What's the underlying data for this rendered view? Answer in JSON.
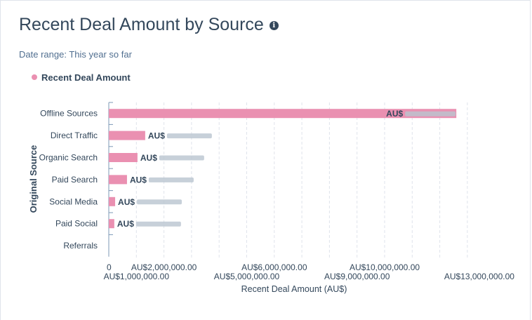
{
  "title": "Recent Deal Amount by Source",
  "date_range_label": "Date range:",
  "date_range_value": "This year so far",
  "colors": {
    "bar": "#ea90b1",
    "text": "#33475b",
    "grid": "#dfe3eb"
  },
  "icons": {
    "info": "info-circle-icon"
  },
  "chart_data": {
    "type": "bar",
    "orientation": "horizontal",
    "title": "Recent Deal Amount by Source",
    "xlabel": "Recent Deal Amount (AU$)",
    "ylabel": "Original Source",
    "legend": {
      "entries": [
        "Recent Deal Amount"
      ],
      "placement": "top-left"
    },
    "categories": [
      "Offline Sources",
      "Direct Traffic",
      "Organic Search",
      "Paid Search",
      "Social Media",
      "Paid Social",
      "Referrals"
    ],
    "series": [
      {
        "name": "Recent Deal Amount",
        "values": [
          12600000,
          1320000,
          1040000,
          660000,
          230000,
          200000,
          0
        ]
      }
    ],
    "data_label_prefix": "AU$",
    "xlim": [
      0,
      13500000
    ],
    "grid": true,
    "xticks": [
      0,
      1000000,
      2000000,
      3000000,
      4000000,
      5000000,
      6000000,
      7000000,
      8000000,
      9000000,
      10000000,
      11000000,
      12000000,
      13000000
    ],
    "xtick_labels": [
      {
        "value": 0,
        "label": "0"
      },
      {
        "value": 1000000,
        "label": "AU$1,000,000.00"
      },
      {
        "value": 2000000,
        "label": "AU$2,000,000.00"
      },
      {
        "value": 5000000,
        "label": "AU$5,000,000.00"
      },
      {
        "value": 6000000,
        "label": "AU$6,000,000.00"
      },
      {
        "value": 9000000,
        "label": "AU$9,000,000.00"
      },
      {
        "value": 10000000,
        "label": "AU$10,000,000.00"
      },
      {
        "value": 13000000,
        "label": "AU$13,000,000.00"
      }
    ]
  }
}
